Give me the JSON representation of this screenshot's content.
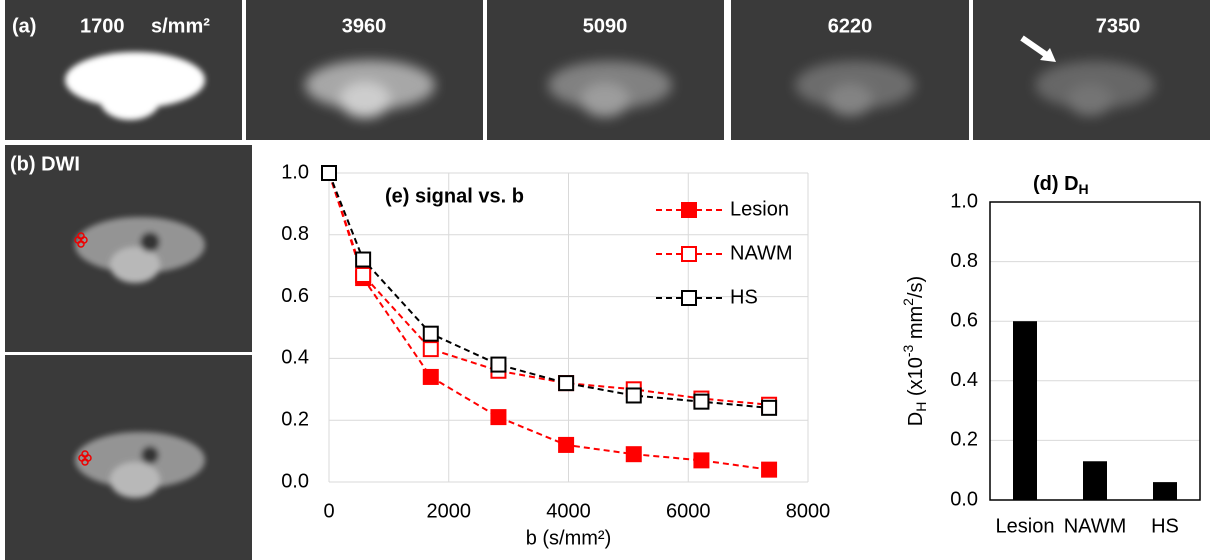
{
  "images": {
    "panel_a": "(a)",
    "b_values": [
      "1700",
      "3960",
      "5090",
      "6220",
      "7350"
    ],
    "b_unit": "s/mm²",
    "panel_b": "(b) DWI"
  },
  "chart_data": [
    {
      "type": "line",
      "title": "(e) signal vs. b",
      "x": [
        0,
        570,
        1700,
        2830,
        3960,
        5090,
        6220,
        7350
      ],
      "xlabel": "b (s/mm²)",
      "xlim": [
        0,
        8000
      ],
      "xticks": [
        0,
        2000,
        4000,
        6000,
        8000
      ],
      "ylim": [
        0,
        1
      ],
      "yticks": [
        {
          "value": 0,
          "label": "0.0"
        },
        {
          "value": 0.2,
          "label": "0.2"
        },
        {
          "value": 0.4,
          "label": "0.4"
        },
        {
          "value": 0.6,
          "label": "0.6"
        },
        {
          "value": 0.8,
          "label": "0.8"
        },
        {
          "value": 1,
          "label": "1.0"
        }
      ],
      "grid": true,
      "legend": "upper right",
      "series": [
        {
          "name": "Lesion",
          "color": "#ff0000",
          "marker": "filled-square",
          "values": [
            1.0,
            0.66,
            0.34,
            0.21,
            0.12,
            0.09,
            0.07,
            0.04
          ]
        },
        {
          "name": "NAWM",
          "color": "#ff0000",
          "marker": "open-square",
          "values": [
            1.0,
            0.67,
            0.43,
            0.36,
            0.32,
            0.3,
            0.27,
            0.25
          ]
        },
        {
          "name": "HS",
          "color": "#000000",
          "marker": "open-square",
          "values": [
            1.0,
            0.72,
            0.48,
            0.38,
            0.32,
            0.28,
            0.26,
            0.24
          ]
        }
      ]
    },
    {
      "type": "bar",
      "title": "(d) D",
      "title_sub": "H",
      "ylabel_parts": [
        "D",
        "H",
        " (x10",
        "-3",
        " mm",
        "2",
        "/s)"
      ],
      "categories": [
        "Lesion",
        "NAWM",
        "HS"
      ],
      "values": [
        0.6,
        0.13,
        0.06
      ],
      "color": "#000000",
      "ylim": [
        0,
        1
      ],
      "yticks": [
        {
          "value": 0,
          "label": "0.0"
        },
        {
          "value": 0.2,
          "label": "0.2"
        },
        {
          "value": 0.4,
          "label": "0.4"
        },
        {
          "value": 0.6,
          "label": "0.6"
        },
        {
          "value": 0.8,
          "label": "0.8"
        },
        {
          "value": 1,
          "label": "1.0"
        }
      ],
      "grid": true
    }
  ]
}
